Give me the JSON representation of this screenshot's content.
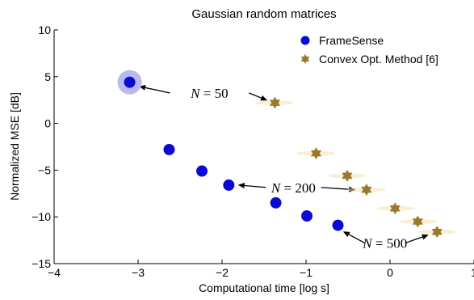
{
  "chart_data": {
    "type": "scatter",
    "title": "Gaussian random matrices",
    "xlabel": "Computational time [log s]",
    "ylabel": "Normalized MSE [dB]",
    "xlim": [
      -4,
      1
    ],
    "ylim": [
      -15,
      10
    ],
    "xticks": [
      -4,
      -3,
      -2,
      -1,
      0,
      1
    ],
    "yticks": [
      -15,
      -10,
      -5,
      0,
      5,
      10
    ],
    "xtick_labels": [
      "−4",
      "−3",
      "−2",
      "−1",
      "0",
      "1"
    ],
    "ytick_labels": [
      "−15",
      "−10",
      "−5",
      "0",
      "5",
      "10"
    ],
    "grid": false,
    "legend_position": "top-right",
    "series": [
      {
        "name": "FrameSense",
        "marker": "circle",
        "color": "#0a0ad2",
        "points": [
          {
            "x": -3.1,
            "y": 4.4,
            "highlighted": true
          },
          {
            "x": -2.63,
            "y": -2.8
          },
          {
            "x": -2.24,
            "y": -5.1
          },
          {
            "x": -1.92,
            "y": -6.6
          },
          {
            "x": -1.36,
            "y": -8.5
          },
          {
            "x": -0.99,
            "y": -9.9
          },
          {
            "x": -0.62,
            "y": -10.9
          }
        ]
      },
      {
        "name": "Convex Opt. Method [6]",
        "marker": "hexagram",
        "color": "#9a7a2a",
        "points": [
          {
            "x": -1.37,
            "y": 2.2
          },
          {
            "x": -0.88,
            "y": -3.2
          },
          {
            "x": -0.51,
            "y": -5.6
          },
          {
            "x": -0.28,
            "y": -7.1
          },
          {
            "x": 0.06,
            "y": -9.1
          },
          {
            "x": 0.33,
            "y": -10.5
          },
          {
            "x": 0.56,
            "y": -11.6
          }
        ]
      }
    ],
    "annotations": [
      {
        "text": "50",
        "arrows": [
          {
            "from": [
              -2.62,
              3.25
            ],
            "to": [
              -2.98,
              3.95
            ]
          },
          {
            "from": [
              -1.68,
              3.25
            ],
            "to": [
              -1.47,
              2.5
            ]
          }
        ]
      },
      {
        "text": "200",
        "arrows": [
          {
            "from": [
              -1.48,
              -6.85
            ],
            "to": [
              -1.8,
              -6.6
            ]
          },
          {
            "from": [
              -0.82,
              -6.85
            ],
            "to": [
              -0.42,
              -7.1
            ]
          }
        ]
      },
      {
        "text": "500",
        "arrows": [
          {
            "from": [
              -0.3,
              -12.8
            ],
            "to": [
              -0.55,
              -11.6
            ]
          },
          {
            "from": [
              0.18,
              -12.8
            ],
            "to": [
              0.45,
              -11.95
            ]
          }
        ]
      }
    ],
    "annotation_prefix": "N = "
  }
}
